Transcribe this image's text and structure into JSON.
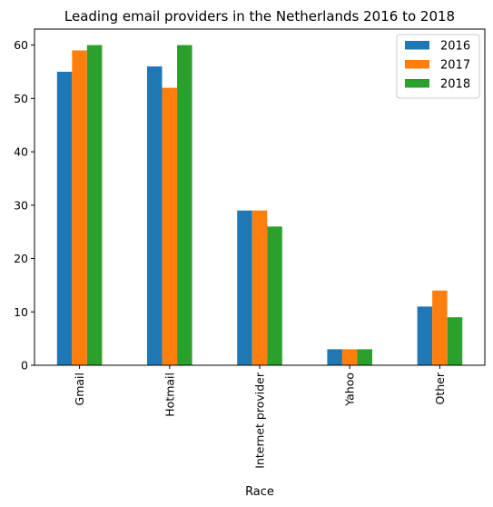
{
  "chart_data": {
    "type": "bar",
    "title": "Leading email providers in the Netherlands 2016 to 2018",
    "xlabel": "Race",
    "ylabel": "",
    "categories": [
      "Gmail",
      "Hotmail",
      "Internet provider",
      "Yahoo",
      "Other"
    ],
    "series": [
      {
        "name": "2016",
        "values": [
          55,
          56,
          29,
          3,
          11
        ],
        "color": "#1f77b4"
      },
      {
        "name": "2017",
        "values": [
          59,
          52,
          29,
          3,
          14
        ],
        "color": "#ff7f0e"
      },
      {
        "name": "2018",
        "values": [
          60,
          60,
          26,
          3,
          9
        ],
        "color": "#2ca02c"
      }
    ],
    "ylim": [
      0,
      63
    ],
    "yticks": [
      0,
      10,
      20,
      30,
      40,
      50,
      60
    ],
    "grid": false,
    "legend_position": "top-right"
  }
}
